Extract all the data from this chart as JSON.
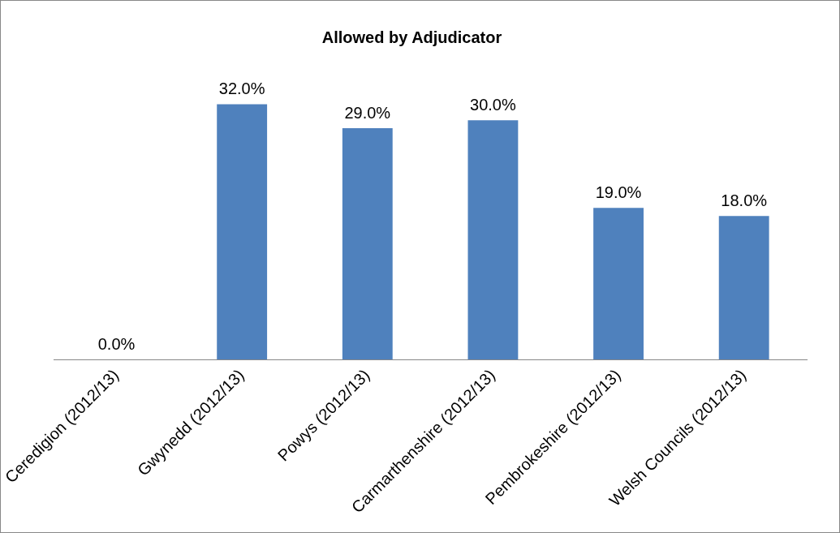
{
  "chart_data": {
    "type": "bar",
    "title": "Allowed by Adjudicator",
    "categories": [
      "Ceredigion (2012/13)",
      "Gwynedd (2012/13)",
      "Powys (2012/13)",
      "Carmarthenshire (2012/13)",
      "Pembrokeshire (2012/13)",
      "Welsh Councils (2012/13)"
    ],
    "values": [
      0,
      32,
      29,
      30,
      19,
      18
    ],
    "value_labels": [
      "0.0%",
      "32.0%",
      "29.0%",
      "30.0%",
      "19.0%",
      "18.0%"
    ],
    "color": "#4f81bd",
    "grid": false,
    "legend": false,
    "tick_labels": "x"
  }
}
